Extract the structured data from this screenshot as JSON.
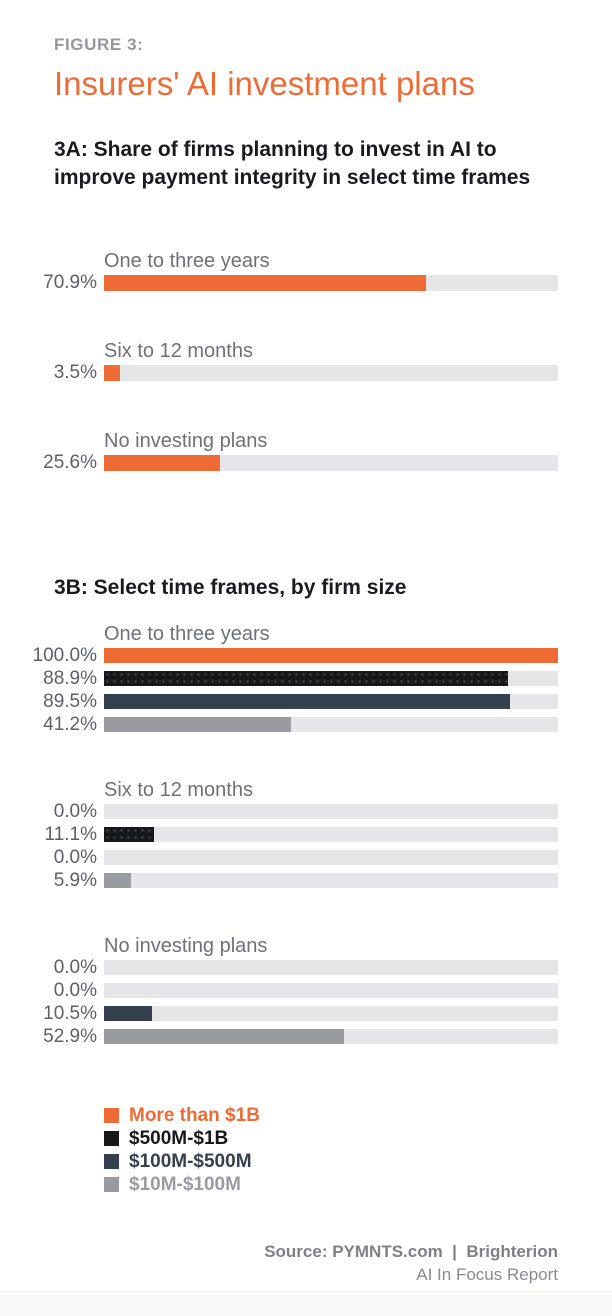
{
  "page": {
    "figure_label": "FIGURE 3:",
    "title": "Insurers' AI investment plans",
    "heading_3a": "3A: Share of firms planning to invest in AI to improve payment integrity in select time frames",
    "heading_3b": "3B: Select time frames, by firm size",
    "footer": {
      "source_line": "Source: PYMNTS.com  |  Brighterion",
      "report_line": "AI In Focus Report"
    },
    "colors": {
      "accent_orange": "#EF6B35",
      "black": "#17181A",
      "navy": "#35404E",
      "gray": "#939499",
      "bar_track": "#E6E6E8",
      "heading_text": "#1A1B1E",
      "label_text": "#6E7176",
      "value_text": "#5D6065"
    }
  },
  "chart_data": [
    {
      "type": "bar",
      "orientation": "horizontal",
      "title": "3A: Share of firms planning to invest in AI to improve payment integrity in select time frames",
      "unit": "%",
      "xlim": [
        0,
        100
      ],
      "grid": false,
      "bar_color": "#EF6B35",
      "categories": [
        "One to three years",
        "Six to 12 months",
        "No investing plans"
      ],
      "values": [
        70.9,
        3.5,
        25.6
      ],
      "value_labels": [
        "70.9%",
        "3.5%",
        "25.6%"
      ]
    },
    {
      "type": "bar",
      "orientation": "horizontal",
      "title": "3B: Select time frames, by firm size",
      "unit": "%",
      "xlim": [
        0,
        100
      ],
      "grid": false,
      "legend_position": "bottom-left",
      "categories": [
        "One to three years",
        "Six to 12 months",
        "No investing plans"
      ],
      "series": [
        {
          "name": "More than $1B",
          "color": "#EF6B35",
          "pattern": "solid",
          "values": [
            100.0,
            0.0,
            0.0
          ]
        },
        {
          "name": "$500M-$1B",
          "color": "#17181A",
          "pattern": "dots",
          "values": [
            88.9,
            11.1,
            0.0
          ]
        },
        {
          "name": "$100M-$500M",
          "color": "#35404E",
          "pattern": "solid",
          "values": [
            89.5,
            0.0,
            10.5
          ]
        },
        {
          "name": "$10M-$100M",
          "color": "#9A9BA0",
          "pattern": "solid",
          "values": [
            41.2,
            5.9,
            52.9
          ]
        }
      ]
    }
  ]
}
